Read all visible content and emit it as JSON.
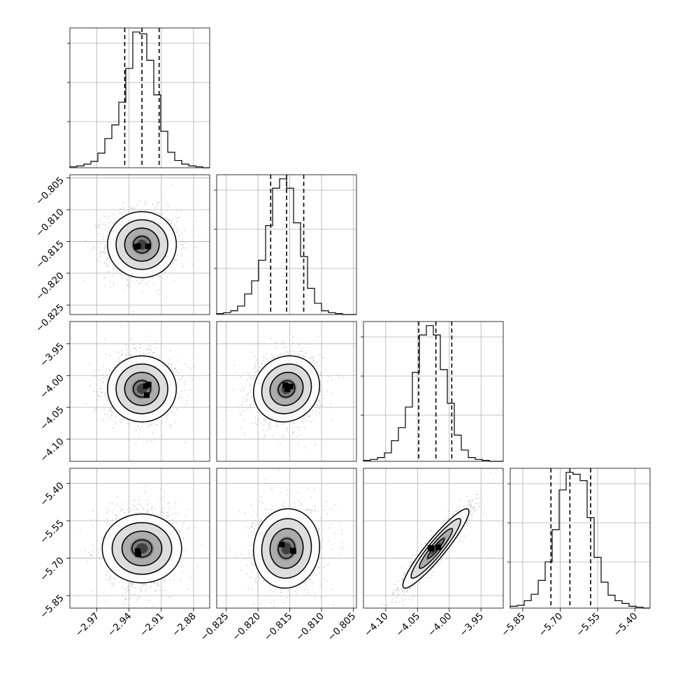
{
  "chart_data": {
    "type": "corner",
    "title": "",
    "colors": {
      "hist": "#000000",
      "scatter": "#bdbdbd",
      "grid": "#b0b0b0"
    },
    "grid": true,
    "quantiles": [
      0.16,
      0.5,
      0.84
    ],
    "parameters": [
      {
        "name": "",
        "range": [
          -2.995,
          -2.865
        ],
        "ticks": [
          -2.97,
          -2.94,
          -2.91,
          -2.88
        ],
        "tick_labels": [
          "−2.97",
          "−2.94",
          "−2.91",
          "−2.88"
        ],
        "median": -2.928,
        "q16": -2.944,
        "q84": -2.912,
        "hist_edges_start": -2.995,
        "hist_bin": 0.0065,
        "hist": [
          1,
          2,
          4,
          7,
          16,
          32,
          47,
          72,
          109,
          149,
          147,
          118,
          80,
          40,
          17,
          8,
          4,
          2,
          1,
          0
        ]
      },
      {
        "name": "",
        "range": [
          -0.8265,
          -0.8045
        ],
        "ticks": [
          -0.825,
          -0.82,
          -0.815,
          -0.81,
          -0.805
        ],
        "tick_labels": [
          "−0.825",
          "−0.820",
          "−0.815",
          "−0.810",
          "−0.805"
        ],
        "ylabels": [
          "−0.805",
          "−0.810",
          "−0.815",
          "−0.820",
          "−0.825"
        ],
        "median": -0.8155,
        "q16": -0.818,
        "q84": -0.8128,
        "hist_edges_start": -0.8265,
        "hist_bin": 0.0011,
        "hist": [
          1,
          2,
          4,
          9,
          22,
          36,
          58,
          95,
          135,
          145,
          135,
          98,
          62,
          28,
          12,
          4,
          2,
          1,
          0,
          0
        ]
      },
      {
        "name": "",
        "range": [
          -4.135,
          -3.915
        ],
        "ticks": [
          -4.1,
          -4.05,
          -4.0,
          -3.95
        ],
        "tick_labels": [
          "−4.10",
          "−4.05",
          "−4.00",
          "−3.95"
        ],
        "median": -4.021,
        "q16": -4.048,
        "q84": -3.996,
        "hist_edges_start": -4.135,
        "hist_bin": 0.011,
        "hist": [
          1,
          2,
          4,
          9,
          22,
          36,
          58,
          95,
          135,
          145,
          135,
          98,
          62,
          28,
          12,
          4,
          2,
          1,
          0,
          0
        ]
      },
      {
        "name": "",
        "range": [
          -5.9,
          -5.34
        ],
        "ticks": [
          -5.85,
          -5.7,
          -5.55,
          -5.4
        ],
        "tick_labels": [
          "−5.85",
          "−5.70",
          "−5.55",
          "−5.40"
        ],
        "median": -5.661,
        "q16": -5.737,
        "q84": -5.578,
        "hist_edges_start": -5.9,
        "hist_bin": 0.028,
        "hist": [
          2,
          3,
          8,
          15,
          30,
          50,
          85,
          128,
          147,
          145,
          138,
          98,
          55,
          28,
          14,
          8,
          5,
          2,
          1,
          0
        ]
      }
    ],
    "correlations": [
      {
        "row": 1,
        "col": 0,
        "rho": 0.0
      },
      {
        "row": 2,
        "col": 0,
        "rho": 0.0
      },
      {
        "row": 2,
        "col": 1,
        "rho": 0.1
      },
      {
        "row": 3,
        "col": 0,
        "rho": 0.0
      },
      {
        "row": 3,
        "col": 1,
        "rho": 0.05
      },
      {
        "row": 3,
        "col": 2,
        "rho": 0.93
      }
    ]
  }
}
